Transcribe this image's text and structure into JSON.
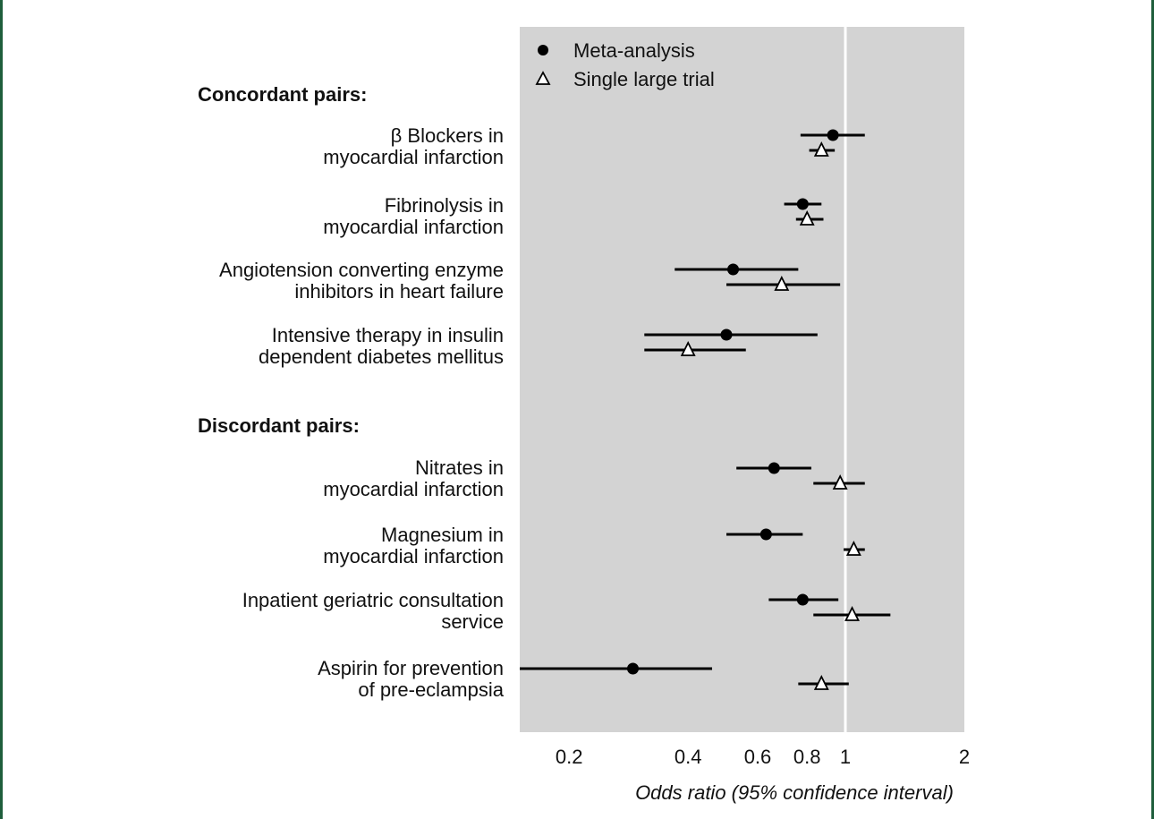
{
  "chart_data": {
    "type": "forest",
    "xscale": "log",
    "xlim": [
      0.15,
      2.0
    ],
    "xticks": [
      0.2,
      0.4,
      0.6,
      0.8,
      1,
      2
    ],
    "xtick_labels": [
      "0.2",
      "0.4",
      "0.6",
      "0.8",
      "1",
      "2"
    ],
    "xlabel": "Odds ratio (95% confidence interval)",
    "reference_line": 1,
    "legend": {
      "placement": "top-left",
      "entries": [
        {
          "marker": "filled-circle",
          "label": "Meta-analysis"
        },
        {
          "marker": "open-triangle",
          "label": "Single large trial"
        }
      ]
    },
    "groups": [
      {
        "title": "Concordant pairs:",
        "rows": [
          {
            "label": [
              "β Blockers in",
              "myocardial infarction"
            ],
            "meta": {
              "or": 0.93,
              "lo": 0.77,
              "hi": 1.12
            },
            "trial": {
              "or": 0.87,
              "lo": 0.81,
              "hi": 0.94
            }
          },
          {
            "label": [
              "Fibrinolysis in",
              "myocardial infarction"
            ],
            "meta": {
              "or": 0.78,
              "lo": 0.7,
              "hi": 0.87
            },
            "trial": {
              "or": 0.8,
              "lo": 0.75,
              "hi": 0.88
            }
          },
          {
            "label": [
              "Angiotension converting enzyme",
              "inhibitors in heart failure"
            ],
            "meta": {
              "or": 0.52,
              "lo": 0.37,
              "hi": 0.76
            },
            "trial": {
              "or": 0.69,
              "lo": 0.5,
              "hi": 0.97
            }
          },
          {
            "label": [
              "Intensive therapy in insulin",
              "dependent diabetes mellitus"
            ],
            "meta": {
              "or": 0.5,
              "lo": 0.31,
              "hi": 0.85
            },
            "trial": {
              "or": 0.4,
              "lo": 0.31,
              "hi": 0.56
            }
          }
        ]
      },
      {
        "title": "Discordant pairs:",
        "rows": [
          {
            "label": [
              "Nitrates in",
              "myocardial infarction"
            ],
            "meta": {
              "or": 0.66,
              "lo": 0.53,
              "hi": 0.82
            },
            "trial": {
              "or": 0.97,
              "lo": 0.83,
              "hi": 1.12
            }
          },
          {
            "label": [
              "Magnesium in",
              "myocardial infarction"
            ],
            "meta": {
              "or": 0.63,
              "lo": 0.5,
              "hi": 0.78
            },
            "trial": {
              "or": 1.05,
              "lo": 0.99,
              "hi": 1.12
            }
          },
          {
            "label": [
              "Inpatient geriatric consultation",
              "service"
            ],
            "meta": {
              "or": 0.78,
              "lo": 0.64,
              "hi": 0.96
            },
            "trial": {
              "or": 1.04,
              "lo": 0.83,
              "hi": 1.3
            }
          },
          {
            "label": [
              "Aspirin for prevention",
              "of pre-eclampsia"
            ],
            "meta": {
              "or": 0.29,
              "lo": 0.15,
              "hi": 0.46
            },
            "trial": {
              "or": 0.87,
              "lo": 0.76,
              "hi": 1.02
            }
          }
        ]
      }
    ]
  }
}
